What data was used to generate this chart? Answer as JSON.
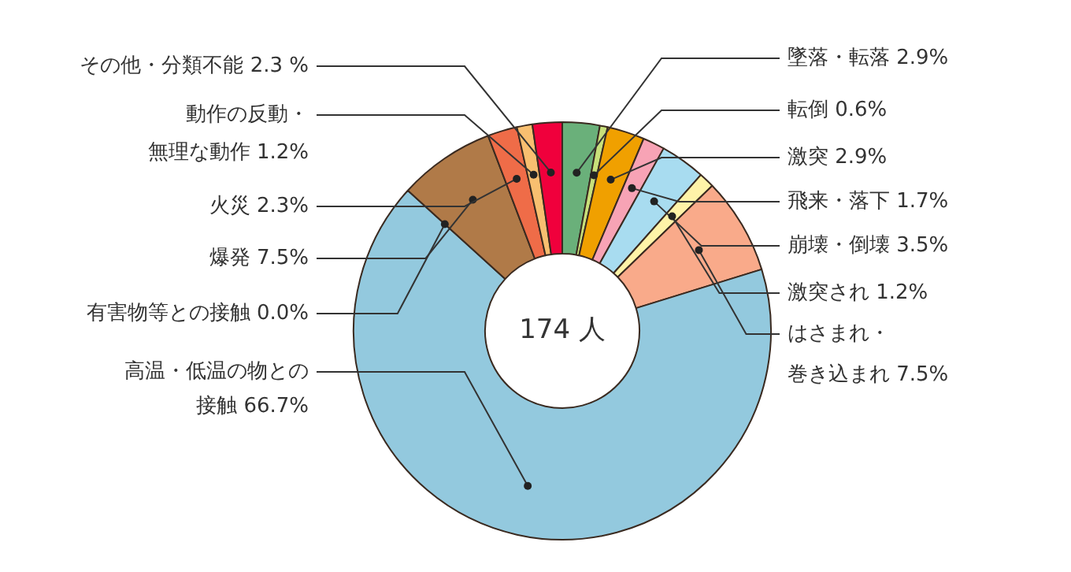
{
  "chart_data": {
    "type": "donut",
    "categories": [
      "墜落・転落",
      "転倒",
      "激突",
      "飛来・落下",
      "崩壊・倒壊",
      "激突され",
      "はさまれ・巻き込まれ",
      "高温・低温の物との接触",
      "有害物等との接触",
      "爆発",
      "火災",
      "動作の反動・無理な動作",
      "その他・分類不能"
    ],
    "values": [
      2.9,
      0.6,
      2.9,
      1.7,
      3.5,
      1.2,
      7.5,
      66.7,
      0.0,
      7.5,
      2.3,
      1.2,
      2.3
    ],
    "value_labels": [
      "2.9%",
      "0.6%",
      "2.9%",
      "1.7%",
      "3.5%",
      "1.2%",
      "7.5%",
      "66.7%",
      "0.0%",
      "7.5%",
      "2.3%",
      "1.2%",
      "2.3 %"
    ],
    "colors": [
      "#6ab07a",
      "#c8e07a",
      "#f0a000",
      "#f7a3b5",
      "#a8dcf0",
      "#fff3a8",
      "#f9aa8a",
      "#93c9de",
      "#e0e0e0",
      "#b07a48",
      "#ef6c48",
      "#f8bf70",
      "#f0003c"
    ],
    "annotations": [
      "174 人"
    ],
    "legend": false
  }
}
